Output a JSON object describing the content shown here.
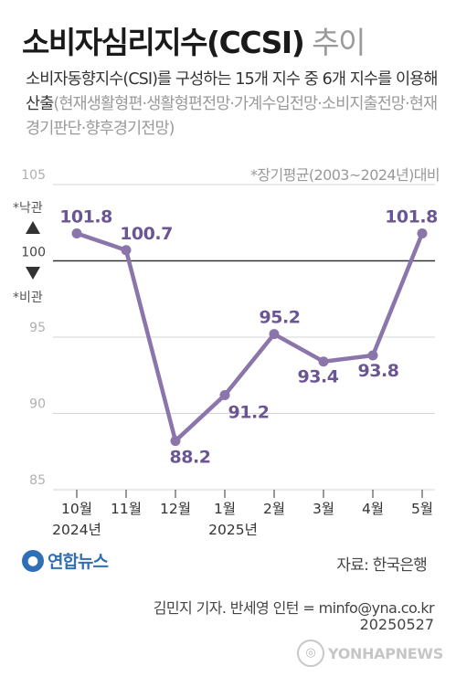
{
  "title": {
    "main": "소비자심리지수(CCSI)",
    "sub": " 추이"
  },
  "description": {
    "text": "소비자동향지수(CSI)를 구성하는 15개 지수 중 6개 지수를 이용해 산출",
    "detail": "(현재생활형편·생활형편전망·가계수입전망·소비지출전망·현재경기판단·향후경기전망)"
  },
  "basis_note": "*장기평균(2003~2024년)대비",
  "side_labels": {
    "up": "*낙관",
    "down": "*비관"
  },
  "chart_data": {
    "type": "line",
    "title": "소비자심리지수(CCSI) 추이",
    "categories": [
      "10월",
      "11월",
      "12월",
      "1월",
      "2월",
      "3월",
      "4월",
      "5월"
    ],
    "year_labels": [
      "2024년",
      "2025년"
    ],
    "values": [
      101.8,
      100.7,
      88.2,
      91.2,
      95.2,
      93.4,
      93.8,
      101.8
    ],
    "value_labels": [
      "101.8",
      "100.7",
      "88.2",
      "91.2",
      "95.2",
      "93.4",
      "93.8",
      "101.8"
    ],
    "y_ticks": [
      "105",
      "100",
      "95",
      "90",
      "85"
    ],
    "ylim": [
      85,
      105
    ],
    "reference_value": 100,
    "grid": true,
    "line_color": "#8b76ab",
    "label_color": "#6b5694"
  },
  "footer": {
    "logo_text": "연합뉴스",
    "source": "자료: 한국은행",
    "credit": "김민지 기자. 반세영 인턴 = minfo@yna.co.kr",
    "date": "20250527",
    "watermark": "YONHAPNEWS"
  }
}
